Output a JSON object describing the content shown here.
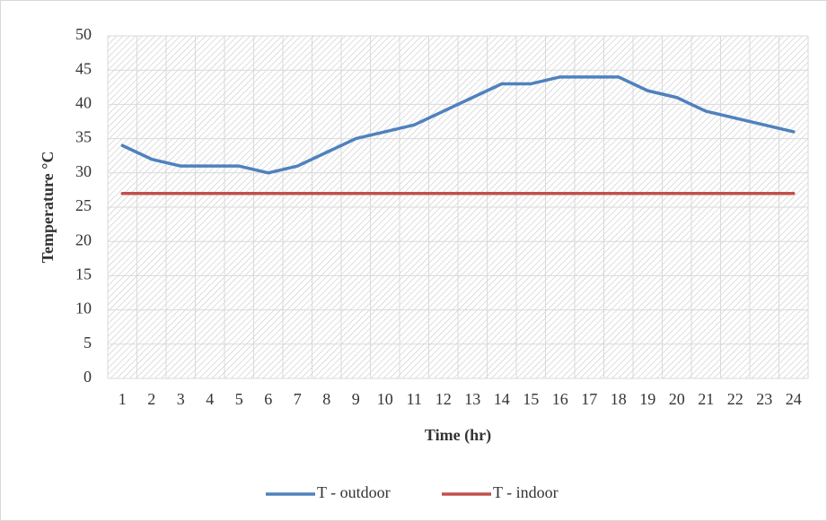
{
  "chart_data": {
    "type": "line",
    "x_label": "Time (hr)",
    "y_label": "Temperature °C",
    "categories": [
      "1",
      "2",
      "3",
      "4",
      "5",
      "6",
      "7",
      "8",
      "9",
      "10",
      "11",
      "12",
      "13",
      "14",
      "15",
      "16",
      "17",
      "18",
      "19",
      "20",
      "21",
      "22",
      "23",
      "24"
    ],
    "series": [
      {
        "name": "T - outdoor",
        "color": "#4f81bd",
        "values": [
          34,
          32,
          31,
          31,
          31,
          30,
          31,
          33,
          35,
          36,
          37,
          39,
          41,
          43,
          43,
          44,
          44,
          44,
          42,
          41,
          39,
          38,
          37,
          36
        ]
      },
      {
        "name": "T - indoor",
        "color": "#c0504d",
        "values": [
          27,
          27,
          27,
          27,
          27,
          27,
          27,
          27,
          27,
          27,
          27,
          27,
          27,
          27,
          27,
          27,
          27,
          27,
          27,
          27,
          27,
          27,
          27,
          27
        ]
      }
    ],
    "ylim": [
      0,
      50
    ],
    "yticks": [
      0,
      5,
      10,
      15,
      20,
      25,
      30,
      35,
      40,
      45,
      50
    ],
    "grid": true,
    "legend": "bottom"
  }
}
